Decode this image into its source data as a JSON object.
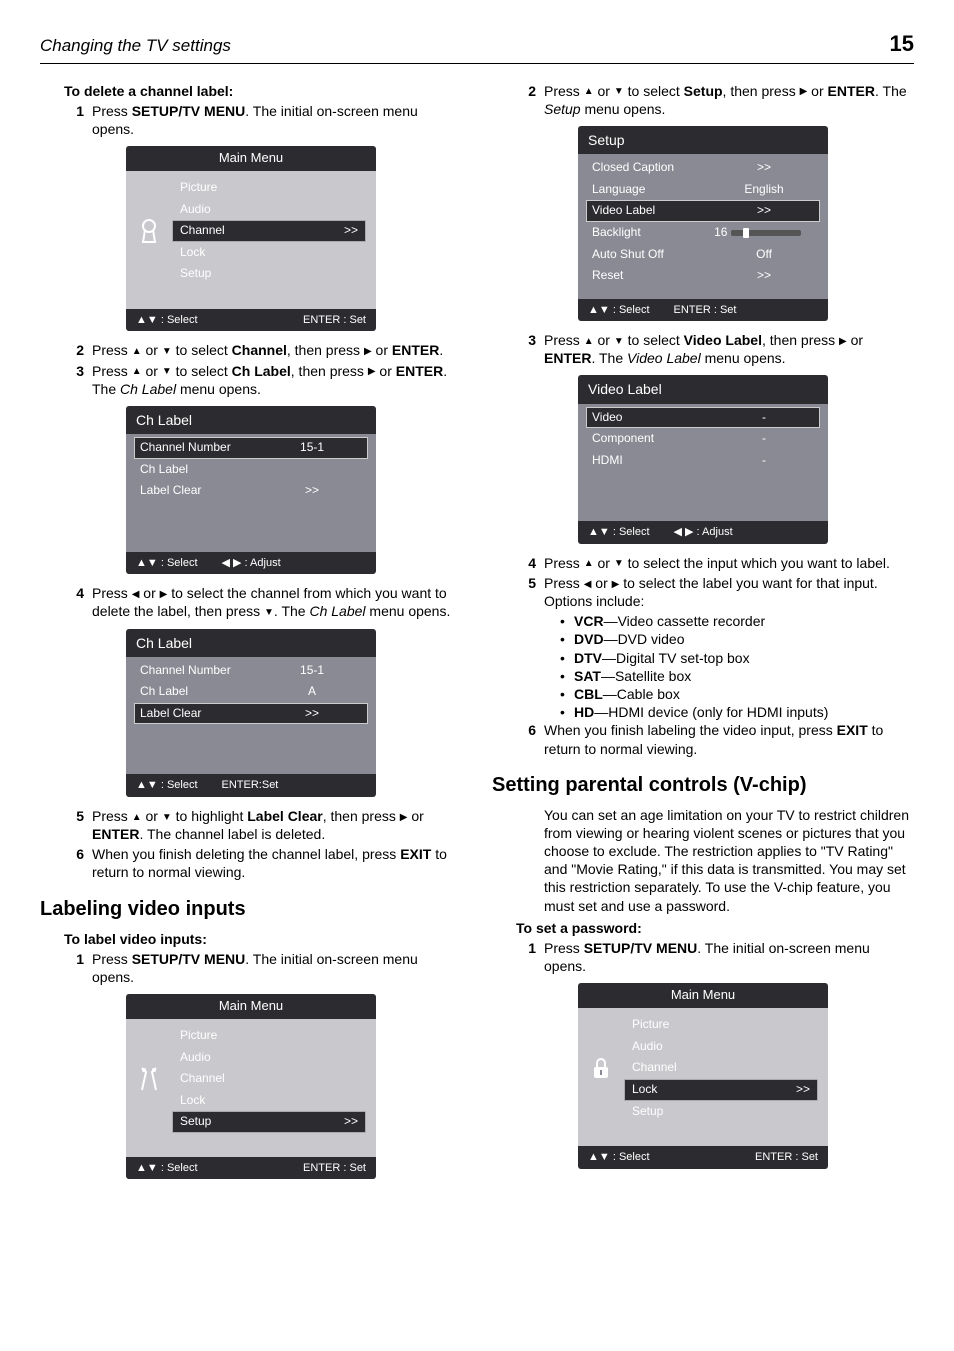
{
  "header": {
    "title": "Changing the TV settings",
    "page": "15"
  },
  "left": {
    "del_heading": "To delete a channel label:",
    "step1": {
      "n": "1",
      "pre": "Press ",
      "b": "SETUP/TV MENU",
      "post": ". The initial on-screen menu opens."
    },
    "mainmenu1": {
      "title": "Main Menu",
      "items": [
        "Picture",
        "Audio",
        "Channel",
        "Lock",
        "Setup"
      ],
      "sel": 2,
      "arrow": ">>",
      "foot_l": "▲▼ : Select",
      "foot_r": "ENTER : Set"
    },
    "step2": {
      "n": "2",
      "pre": "Press ",
      "a1": "▲",
      "mid1": " or ",
      "a2": "▼",
      "mid2": " to select ",
      "b": "Channel",
      "mid3": ", then press ",
      "a3": "▶",
      "mid4": " or ",
      "b2": "ENTER",
      "post": "."
    },
    "step3": {
      "n": "3",
      "pre": "Press ",
      "a1": "▲",
      "mid1": " or ",
      "a2": "▼",
      "mid2": " to select ",
      "b": "Ch Label",
      "mid3": ", then press ",
      "a3": "▶",
      "mid4": " or ",
      "b2": "ENTER",
      "post": ". The ",
      "i": "Ch Label",
      "post2": " menu opens."
    },
    "chlabel1": {
      "title": "Ch Label",
      "rows": [
        [
          "Channel Number",
          "15-1"
        ],
        [
          "Ch Label",
          ""
        ],
        [
          "Label Clear",
          ">>"
        ]
      ],
      "sel": 0,
      "foot_l": "▲▼ : Select",
      "foot_r": "◀ ▶ : Adjust"
    },
    "step4": {
      "n": "4",
      "pre": "Press ",
      "a1": "◀",
      "mid1": " or ",
      "a2": "▶",
      "mid2": " to select the channel from which you want to delete the label, then press ",
      "a3": "▼",
      "post": ". The ",
      "i": "Ch Label",
      "post2": " menu opens."
    },
    "chlabel2": {
      "title": "Ch Label",
      "rows": [
        [
          "Channel Number",
          "15-1"
        ],
        [
          "Ch Label",
          "A"
        ],
        [
          "Label Clear",
          ">>"
        ]
      ],
      "sel": 2,
      "foot_l": "▲▼ : Select",
      "foot_r": "ENTER:Set"
    },
    "step5": {
      "n": "5",
      "pre": "Press ",
      "a1": "▲",
      "mid1": " or ",
      "a2": "▼",
      "mid2": " to highlight ",
      "b": "Label Clear",
      "mid3": ", then press ",
      "a3": "▶",
      "mid4": " or ",
      "b2": "ENTER",
      "post": ". The channel label is deleted."
    },
    "step6": {
      "n": "6",
      "pre": "When you finish deleting the channel label, press ",
      "b": "EXIT",
      "post": " to return to normal viewing."
    },
    "h2": "Labeling video inputs",
    "sub2": "To label video inputs:",
    "lv_step1": {
      "n": "1",
      "pre": "Press ",
      "b": "SETUP/TV MENU",
      "post": ". The initial on-screen menu opens."
    },
    "mainmenu2": {
      "title": "Main Menu",
      "items": [
        "Picture",
        "Audio",
        "Channel",
        "Lock",
        "Setup"
      ],
      "sel": 4,
      "arrow": ">>",
      "foot_l": "▲▼ : Select",
      "foot_r": "ENTER : Set"
    }
  },
  "right": {
    "step2": {
      "n": "2",
      "pre": "Press ",
      "a1": "▲",
      "mid1": " or ",
      "a2": "▼",
      "mid2": " to select ",
      "b": "Setup",
      "mid3": ", then press ",
      "a3": "▶",
      "mid4": " or ",
      "b2": "ENTER",
      "post": ". The ",
      "i": "Setup",
      "post2": " menu opens."
    },
    "setup": {
      "title": "Setup",
      "rows": [
        [
          "Closed Caption",
          ">>"
        ],
        [
          "Language",
          "English"
        ],
        [
          "Video Label",
          ">>"
        ],
        [
          "Backlight",
          "16"
        ],
        [
          "Auto Shut Off",
          "Off"
        ],
        [
          "Reset",
          ">>"
        ]
      ],
      "sel": 2,
      "foot_l": "▲▼ : Select",
      "foot_r": "ENTER : Set"
    },
    "step3": {
      "n": "3",
      "pre": "Press ",
      "a1": "▲",
      "mid1": " or ",
      "a2": "▼",
      "mid2": " to select ",
      "b": "Video Label",
      "mid3": ", then press ",
      "a3": "▶",
      "mid4": " or ",
      "b2": "ENTER",
      "post": ". The ",
      "i": "Video Label",
      "post2": " menu opens."
    },
    "vlabel": {
      "title": "Video Label",
      "rows": [
        [
          "Video",
          "-"
        ],
        [
          "Component",
          "-"
        ],
        [
          "HDMI",
          "-"
        ]
      ],
      "sel": 0,
      "foot_l": "▲▼ : Select",
      "foot_r": "◀ ▶ : Adjust"
    },
    "step4": {
      "n": "4",
      "pre": "Press ",
      "a1": "▲",
      "mid1": " or ",
      "a2": "▼",
      "post": " to select the input which you want to label."
    },
    "step5": {
      "n": "5",
      "pre": "Press ",
      "a1": "◀",
      "mid1": " or ",
      "a2": "▶",
      "post": " to select the label you want for that input. Options include:"
    },
    "opts": [
      {
        "b": "VCR",
        "t": "—Video cassette recorder"
      },
      {
        "b": "DVD",
        "t": "—DVD video"
      },
      {
        "b": "DTV",
        "t": "—Digital TV set-top box"
      },
      {
        "b": "SAT",
        "t": "—Satellite box"
      },
      {
        "b": "CBL",
        "t": "—Cable box"
      },
      {
        "b": "HD",
        "t": "—HDMI device (only for HDMI inputs)"
      }
    ],
    "step6": {
      "n": "6",
      "pre": "When you finish labeling the video input, press ",
      "b": "EXIT",
      "post": " to return to normal viewing."
    },
    "h2": "Setting parental controls (V-chip)",
    "intro": "You can set an age limitation on your TV to restrict children from viewing or hearing violent scenes or pictures that you choose to exclude. The restriction applies to \"TV Rating\" and \"Movie Rating,\" if this data is transmitted. You may set this restriction separately. To use the V-chip feature, you must set and use a password.",
    "sub": "To set a password:",
    "pw_step1": {
      "n": "1",
      "pre": "Press ",
      "b": "SETUP/TV MENU",
      "post": ". The initial on-screen menu opens."
    },
    "mainmenu3": {
      "title": "Main Menu",
      "items": [
        "Picture",
        "Audio",
        "Channel",
        "Lock",
        "Setup"
      ],
      "sel": 3,
      "arrow": ">>",
      "foot_l": "▲▼ : Select",
      "foot_r": "ENTER : Set"
    }
  }
}
